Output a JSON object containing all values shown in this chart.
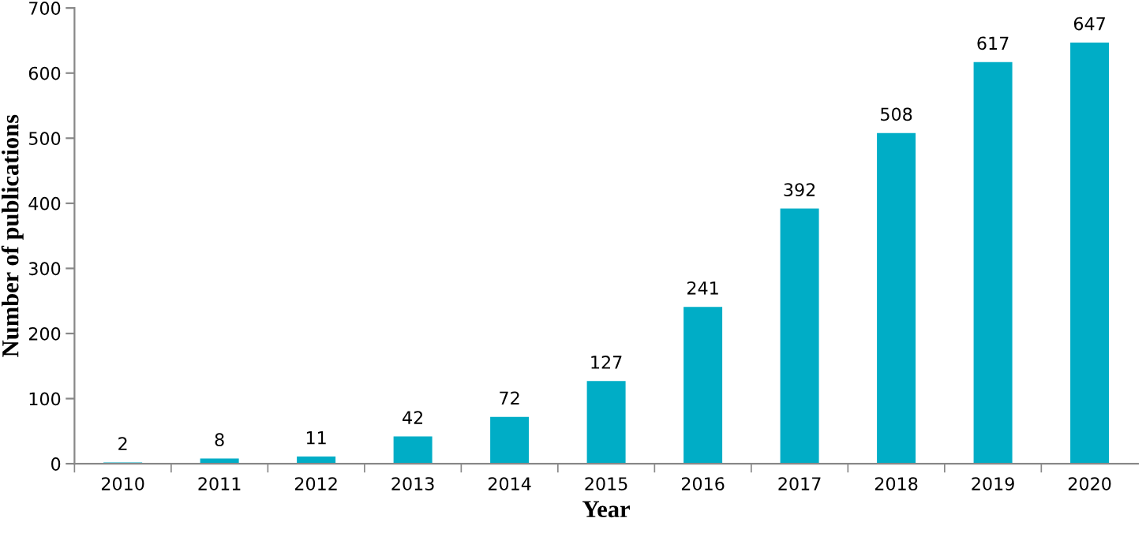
{
  "chart_data": {
    "type": "bar",
    "xlabel": "Year",
    "ylabel": "Number of publications",
    "categories": [
      "2010",
      "2011",
      "2012",
      "2013",
      "2014",
      "2015",
      "2016",
      "2017",
      "2018",
      "2019",
      "2020"
    ],
    "values": [
      2,
      8,
      11,
      42,
      72,
      127,
      241,
      392,
      508,
      617,
      647
    ],
    "color": "#00adc6",
    "ylim": [
      0,
      700
    ],
    "yticks": [
      0,
      100,
      200,
      300,
      400,
      500,
      600,
      700
    ],
    "data_labels": true,
    "grid": false,
    "legend": false
  }
}
